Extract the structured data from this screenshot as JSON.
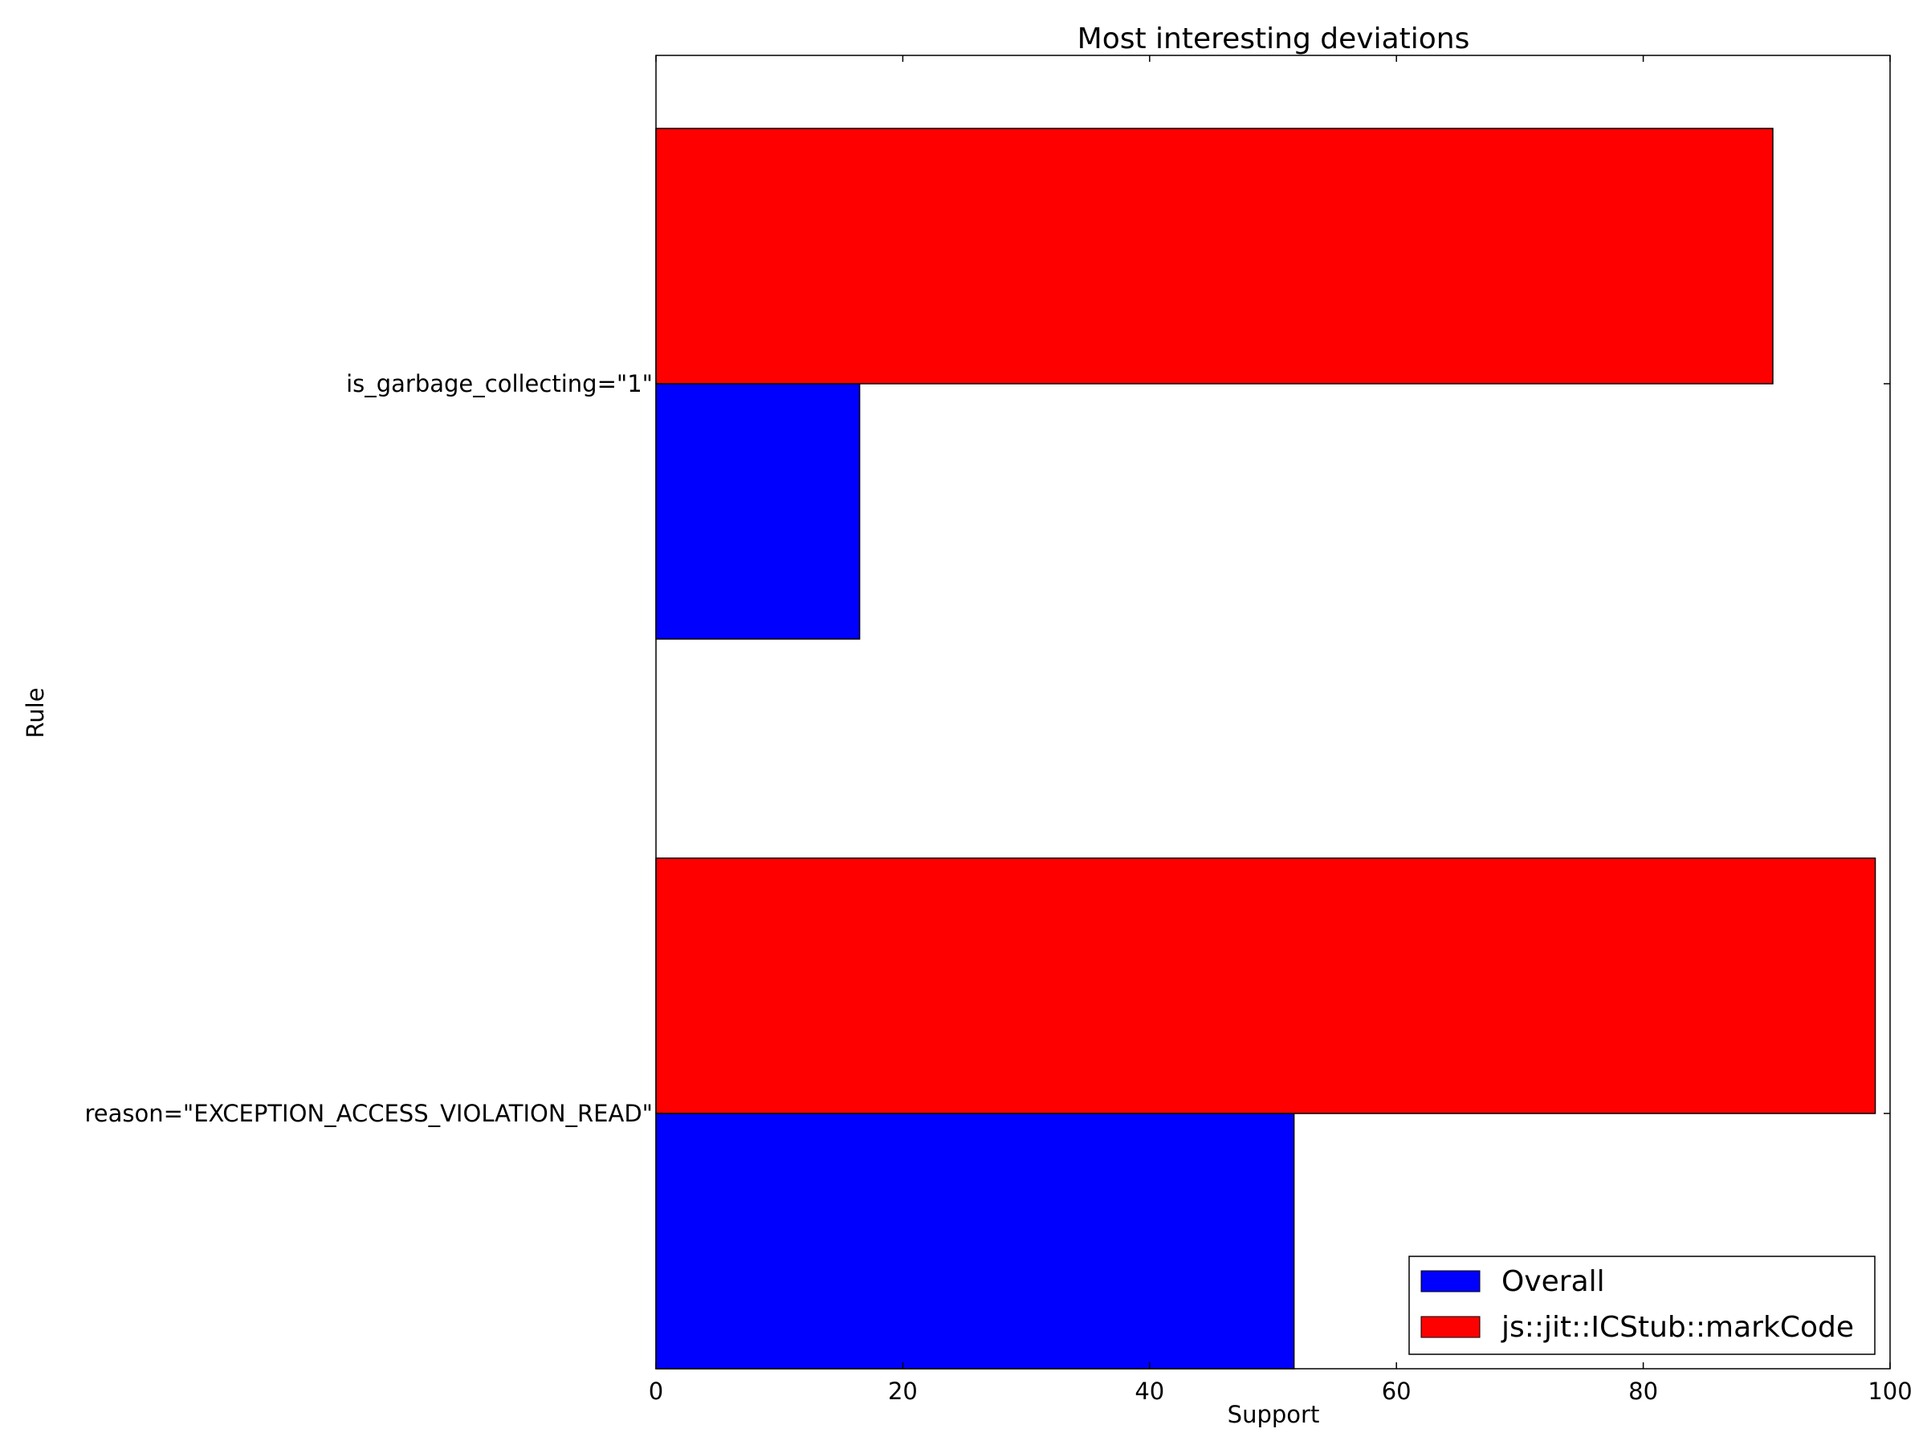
{
  "chart_data": {
    "type": "bar",
    "orientation": "horizontal",
    "title": "Most interesting deviations",
    "xlabel": "Support",
    "ylabel": "Rule",
    "xlim": [
      0,
      100
    ],
    "x_ticks": [
      "0",
      "20",
      "40",
      "60",
      "80",
      "100"
    ],
    "categories": [
      "is_garbage_collecting=\"1\"",
      "reason=\"EXCEPTION_ACCESS_VIOLATION_READ\""
    ],
    "series": [
      {
        "name": "Overall",
        "color": "#0000ff",
        "values": [
          16.5,
          51.7
        ]
      },
      {
        "name": "js::jit::ICStub::markCode",
        "color": "#ff0000",
        "values": [
          90.5,
          98.8
        ]
      }
    ],
    "grid": false,
    "legend_position": "lower-right"
  }
}
